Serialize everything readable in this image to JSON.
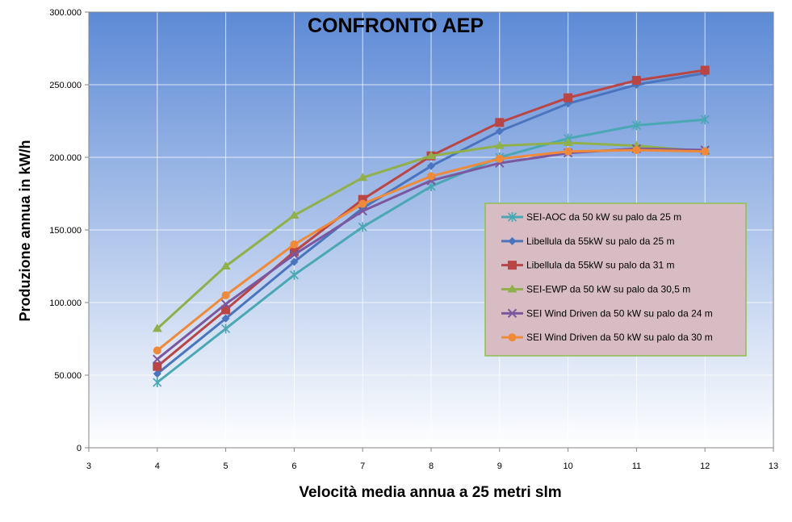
{
  "chart_data": {
    "type": "line",
    "title": "CONFRONTO AEP",
    "xlabel": "Velocità media annua a 25 metri slm",
    "ylabel": "Produzione annua in kW/h",
    "xlim": [
      3,
      13
    ],
    "ylim": [
      0,
      300000
    ],
    "x_ticks": [
      3,
      4,
      5,
      6,
      7,
      8,
      9,
      10,
      11,
      12,
      13
    ],
    "x_tick_labels": [
      "3",
      "4",
      "5",
      "6",
      "7",
      "8",
      "9",
      "10",
      "11",
      "12",
      "13"
    ],
    "y_ticks": [
      0,
      50000,
      100000,
      150000,
      200000,
      250000,
      300000
    ],
    "y_tick_labels": [
      "0",
      "50.000",
      "100.000",
      "150.000",
      "200.000",
      "250.000",
      "300.000"
    ],
    "grid": true,
    "legend_position": "right",
    "background_gradient": [
      "#5d8ad6",
      "#ffffff"
    ],
    "legend_background": "#d8bcc4",
    "legend_border": "#8fbf4f",
    "x": [
      4,
      5,
      6,
      7,
      8,
      9,
      10,
      11,
      12
    ],
    "series": [
      {
        "name": "SEI-AOC da 50  kW su palo da 25  m",
        "color": "#4aa7b4",
        "marker": "star",
        "values": [
          45000,
          82000,
          119000,
          152000,
          180000,
          200000,
          213000,
          222000,
          226000
        ]
      },
      {
        "name": "Libellula da 55kW su palo da 25  m",
        "color": "#4a74bd",
        "marker": "diamond",
        "values": [
          51000,
          89000,
          128000,
          165000,
          194000,
          218000,
          237000,
          250000,
          258000
        ]
      },
      {
        "name": "Libellula da 55kW su palo da 31  m",
        "color": "#b94545",
        "marker": "square",
        "values": [
          56000,
          95000,
          135000,
          171000,
          201000,
          224000,
          241000,
          253000,
          260000
        ]
      },
      {
        "name": "SEI-EWP da 50  kW su palo da 30,5  m",
        "color": "#8fb04a",
        "marker": "triangle",
        "values": [
          82000,
          125000,
          160000,
          186000,
          201000,
          208000,
          210000,
          208000,
          204000
        ]
      },
      {
        "name": "SEI Wind Driven da 50 kW su palo da 24  m",
        "color": "#7a579e",
        "marker": "x",
        "values": [
          61000,
          99000,
          133000,
          163000,
          184000,
          196000,
          203000,
          206000,
          205000
        ]
      },
      {
        "name": "SEI Wind Driven da 50 kW su palo da 30  m",
        "color": "#ee8a3a",
        "marker": "circle",
        "values": [
          67000,
          105000,
          140000,
          168000,
          187000,
          199000,
          204000,
          205000,
          204000
        ]
      }
    ]
  }
}
